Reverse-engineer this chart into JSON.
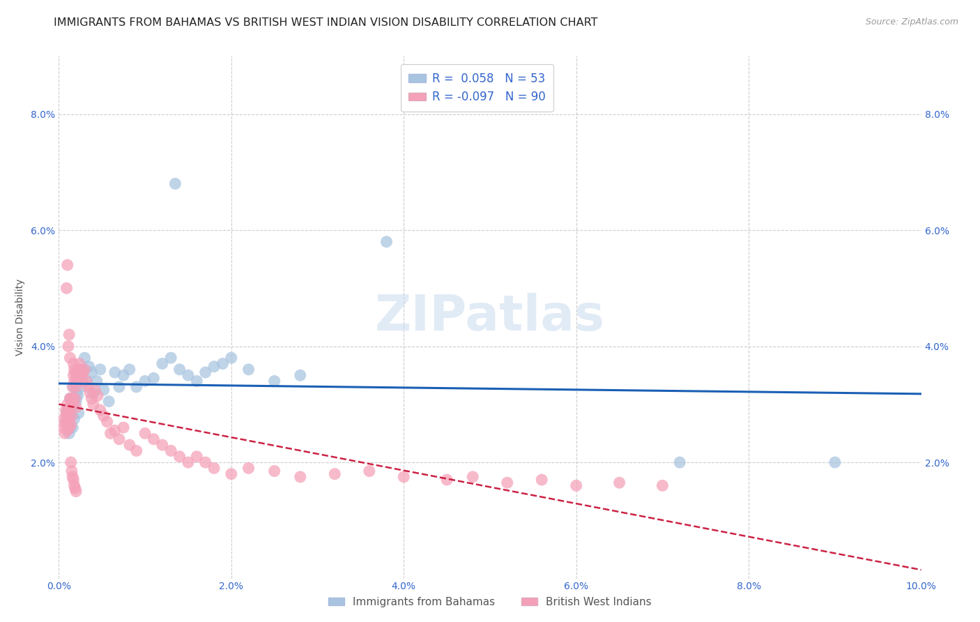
{
  "title": "IMMIGRANTS FROM BAHAMAS VS BRITISH WEST INDIAN VISION DISABILITY CORRELATION CHART",
  "source": "Source: ZipAtlas.com",
  "ylabel": "Vision Disability",
  "xlim": [
    0.0,
    0.1
  ],
  "ylim": [
    0.0,
    0.09
  ],
  "xtick_vals": [
    0.0,
    0.02,
    0.04,
    0.06,
    0.08,
    0.1
  ],
  "ytick_vals": [
    0.0,
    0.02,
    0.04,
    0.06,
    0.08
  ],
  "xtick_labels": [
    "0.0%",
    "2.0%",
    "4.0%",
    "6.0%",
    "8.0%",
    "10.0%"
  ],
  "ytick_labels": [
    "",
    "2.0%",
    "4.0%",
    "6.0%",
    "8.0%"
  ],
  "color_blue": "#a8c4e0",
  "color_pink": "#f4a0b8",
  "line_blue": "#1a5fb4",
  "line_pink": "#cc2244",
  "r_blue": 0.058,
  "n_blue": 53,
  "r_pink": -0.097,
  "n_pink": 90,
  "label_blue": "Immigrants from Bahamas",
  "label_pink": "British West Indians",
  "watermark": "ZIPatlas",
  "tick_color": "#3366cc",
  "ylabel_color": "#555555",
  "grid_color": "#cccccc",
  "title_color": "#222222",
  "source_color": "#999999",
  "blue_x": [
    0.0008,
    0.0009,
    0.001,
    0.001,
    0.0011,
    0.0012,
    0.0013,
    0.0013,
    0.0014,
    0.0015,
    0.0016,
    0.0017,
    0.0018,
    0.0019,
    0.002,
    0.0021,
    0.0022,
    0.0023,
    0.0025,
    0.0026,
    0.0028,
    0.003,
    0.0033,
    0.0035,
    0.0038,
    0.004,
    0.0044,
    0.0048,
    0.0052,
    0.0058,
    0.0065,
    0.007,
    0.0075,
    0.0082,
    0.009,
    0.01,
    0.011,
    0.012,
    0.013,
    0.014,
    0.015,
    0.016,
    0.017,
    0.018,
    0.019,
    0.02,
    0.022,
    0.025,
    0.028,
    0.0135,
    0.072,
    0.09,
    0.038
  ],
  "blue_y": [
    0.027,
    0.0285,
    0.0265,
    0.029,
    0.0275,
    0.025,
    0.026,
    0.031,
    0.028,
    0.0295,
    0.026,
    0.033,
    0.0275,
    0.031,
    0.0305,
    0.032,
    0.0315,
    0.0285,
    0.035,
    0.033,
    0.036,
    0.038,
    0.034,
    0.0365,
    0.0355,
    0.032,
    0.034,
    0.036,
    0.0325,
    0.0305,
    0.0355,
    0.033,
    0.035,
    0.036,
    0.033,
    0.034,
    0.0345,
    0.037,
    0.038,
    0.036,
    0.035,
    0.034,
    0.0355,
    0.0365,
    0.037,
    0.038,
    0.036,
    0.034,
    0.035,
    0.068,
    0.02,
    0.02,
    0.058
  ],
  "pink_x": [
    0.0005,
    0.0006,
    0.0007,
    0.0008,
    0.0008,
    0.0009,
    0.0009,
    0.001,
    0.001,
    0.001,
    0.0011,
    0.0011,
    0.0012,
    0.0012,
    0.0013,
    0.0013,
    0.0014,
    0.0014,
    0.0015,
    0.0015,
    0.0016,
    0.0016,
    0.0017,
    0.0017,
    0.0018,
    0.0018,
    0.0019,
    0.0019,
    0.002,
    0.002,
    0.0021,
    0.0022,
    0.0023,
    0.0024,
    0.0025,
    0.0026,
    0.0027,
    0.0028,
    0.003,
    0.0032,
    0.0034,
    0.0036,
    0.0038,
    0.004,
    0.0042,
    0.0045,
    0.0048,
    0.0052,
    0.0056,
    0.006,
    0.0065,
    0.007,
    0.0075,
    0.0082,
    0.009,
    0.01,
    0.011,
    0.012,
    0.013,
    0.014,
    0.015,
    0.016,
    0.017,
    0.018,
    0.02,
    0.022,
    0.025,
    0.028,
    0.032,
    0.036,
    0.04,
    0.045,
    0.048,
    0.052,
    0.056,
    0.06,
    0.065,
    0.07,
    0.0009,
    0.001,
    0.0011,
    0.0012,
    0.0013,
    0.0014,
    0.0015,
    0.0016,
    0.0017,
    0.0018,
    0.0019,
    0.002
  ],
  "pink_y": [
    0.026,
    0.0275,
    0.025,
    0.029,
    0.0265,
    0.028,
    0.027,
    0.0255,
    0.03,
    0.0285,
    0.027,
    0.029,
    0.028,
    0.026,
    0.031,
    0.0295,
    0.0265,
    0.031,
    0.03,
    0.028,
    0.033,
    0.031,
    0.035,
    0.037,
    0.034,
    0.036,
    0.0355,
    0.031,
    0.033,
    0.0295,
    0.034,
    0.0355,
    0.0345,
    0.037,
    0.036,
    0.0355,
    0.034,
    0.0355,
    0.036,
    0.034,
    0.033,
    0.032,
    0.031,
    0.03,
    0.0325,
    0.0315,
    0.029,
    0.028,
    0.027,
    0.025,
    0.0255,
    0.024,
    0.026,
    0.023,
    0.022,
    0.025,
    0.024,
    0.023,
    0.022,
    0.021,
    0.02,
    0.021,
    0.02,
    0.019,
    0.018,
    0.019,
    0.0185,
    0.0175,
    0.018,
    0.0185,
    0.0175,
    0.017,
    0.0175,
    0.0165,
    0.017,
    0.016,
    0.0165,
    0.016,
    0.05,
    0.054,
    0.04,
    0.042,
    0.038,
    0.02,
    0.0185,
    0.0175,
    0.017,
    0.016,
    0.0155,
    0.015
  ]
}
